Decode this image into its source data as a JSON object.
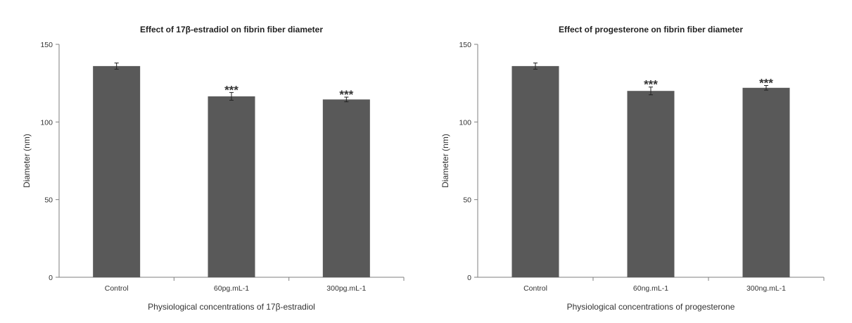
{
  "chart_data": [
    {
      "type": "bar",
      "title": "Effect of 17β-estradiol on fibrin fiber diameter",
      "xlabel": "Physiological concentrations of 17β-estradiol",
      "ylabel": "Diameter (nm)",
      "categories": [
        "Control",
        "60pg.mL-1",
        "300pg.mL-1"
      ],
      "values": [
        136,
        116.5,
        114.5
      ],
      "errors": [
        2,
        2.5,
        1.5
      ],
      "annotations": [
        "",
        "***",
        "***"
      ],
      "ylim": [
        0,
        150
      ],
      "yticks": [
        0,
        50,
        100,
        150
      ],
      "bar_color": "#595959",
      "grid": false,
      "legend": "none"
    },
    {
      "type": "bar",
      "title": "Effect of progesterone on fibrin fiber diameter",
      "xlabel": "Physiological concentrations of progesterone",
      "ylabel": "Diameter (nm)",
      "categories": [
        "Control",
        "60ng.mL-1",
        "300ng.mL-1"
      ],
      "values": [
        136,
        120,
        122
      ],
      "errors": [
        2,
        2.5,
        1.5
      ],
      "annotations": [
        "",
        "***",
        "***"
      ],
      "ylim": [
        0,
        150
      ],
      "yticks": [
        0,
        50,
        100,
        150
      ],
      "bar_color": "#595959",
      "grid": false,
      "legend": "none"
    }
  ]
}
